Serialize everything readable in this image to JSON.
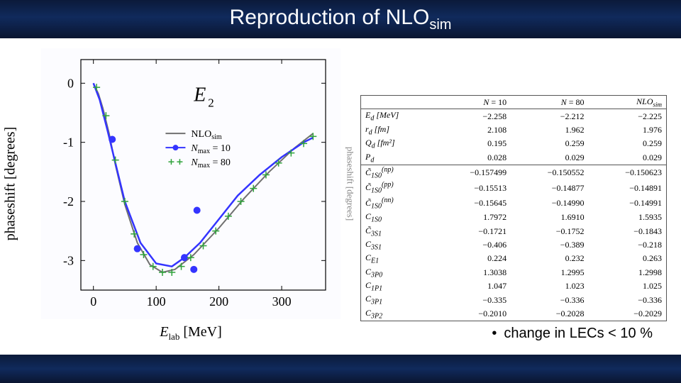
{
  "slide_title": "Reproduction of NLO",
  "slide_title_sub": "sim",
  "bullet_text": "change in LECs < 10 %",
  "chart": {
    "type": "line+scatter",
    "title_text": "E",
    "title_sub": "2",
    "xlabel": "E_lab [MeV]",
    "ylabel": "phaseshift [degrees]",
    "phantom_ylabel": "phaseshift [degrees]",
    "xlim": [
      -20,
      370
    ],
    "ylim": [
      -3.5,
      0.4
    ],
    "xticks": [
      0,
      100,
      200,
      300
    ],
    "yticks": [
      0,
      -1,
      -2,
      -3
    ],
    "background": "#fcfcff",
    "legend": [
      {
        "label": "NLO_sim",
        "kind": "line",
        "color": "#707070"
      },
      {
        "label": "N_max = 10",
        "kind": "dot",
        "color": "#3434ff"
      },
      {
        "label": "N_max = 80",
        "kind": "plus",
        "color": "#2fa33b"
      }
    ],
    "series": {
      "nlo": {
        "color": "#707070",
        "stroke_width": 2,
        "points": [
          [
            0,
            0
          ],
          [
            8,
            -0.18
          ],
          [
            15,
            -0.42
          ],
          [
            25,
            -0.85
          ],
          [
            35,
            -1.38
          ],
          [
            50,
            -2.05
          ],
          [
            70,
            -2.7
          ],
          [
            90,
            -3.07
          ],
          [
            110,
            -3.2
          ],
          [
            130,
            -3.15
          ],
          [
            160,
            -2.9
          ],
          [
            200,
            -2.45
          ],
          [
            240,
            -1.95
          ],
          [
            280,
            -1.5
          ],
          [
            320,
            -1.1
          ],
          [
            350,
            -0.85
          ]
        ]
      },
      "n10_curve": {
        "color": "#3434ff",
        "stroke_width": 2.5,
        "points": [
          [
            0,
            0
          ],
          [
            10,
            -0.28
          ],
          [
            22,
            -0.78
          ],
          [
            35,
            -1.35
          ],
          [
            50,
            -2.0
          ],
          [
            75,
            -2.7
          ],
          [
            100,
            -3.05
          ],
          [
            125,
            -3.1
          ],
          [
            145,
            -2.95
          ],
          [
            170,
            -2.7
          ],
          [
            200,
            -2.3
          ],
          [
            230,
            -1.9
          ],
          [
            265,
            -1.55
          ],
          [
            300,
            -1.25
          ],
          [
            335,
            -1.0
          ],
          [
            350,
            -0.92
          ]
        ]
      },
      "n10_dots": {
        "color": "#3434ff",
        "r": 5,
        "points": [
          [
            30,
            -0.95
          ],
          [
            70,
            -2.8
          ],
          [
            145,
            -2.95
          ],
          [
            165,
            -2.15
          ],
          [
            160,
            -3.15
          ]
        ]
      },
      "n80_plus": {
        "color": "#2fa33b",
        "size": 5,
        "stroke_width": 1.5,
        "points": [
          [
            5,
            -0.07
          ],
          [
            20,
            -0.55
          ],
          [
            35,
            -1.3
          ],
          [
            50,
            -2.0
          ],
          [
            65,
            -2.55
          ],
          [
            80,
            -2.9
          ],
          [
            95,
            -3.1
          ],
          [
            110,
            -3.2
          ],
          [
            125,
            -3.2
          ],
          [
            140,
            -3.1
          ],
          [
            155,
            -2.95
          ],
          [
            175,
            -2.75
          ],
          [
            195,
            -2.5
          ],
          [
            215,
            -2.25
          ],
          [
            235,
            -2.0
          ],
          [
            255,
            -1.78
          ],
          [
            275,
            -1.55
          ],
          [
            295,
            -1.35
          ],
          [
            315,
            -1.18
          ],
          [
            335,
            -1.02
          ],
          [
            350,
            -0.9
          ]
        ]
      }
    }
  },
  "table": {
    "columns": [
      "",
      "N = 10",
      "N = 80",
      "NLO_sim"
    ],
    "rows": [
      [
        "E_d  [MeV]",
        "−2.258",
        "−2.212",
        "−2.225"
      ],
      [
        "r_d  [fm]",
        "2.108",
        "1.962",
        "1.976"
      ],
      [
        "Q_d  [fm²]",
        "0.195",
        "0.259",
        "0.259"
      ],
      [
        "P_d",
        "0.028",
        "0.029",
        "0.029"
      ]
    ],
    "rows2": [
      [
        "C̃_1S0^(np)",
        "−0.157499",
        "−0.150552",
        "−0.150623"
      ],
      [
        "C̃_1S0^(pp)",
        "−0.15513",
        "−0.14877",
        "−0.14891"
      ],
      [
        "C̃_1S0^(nn)",
        "−0.15645",
        "−0.14990",
        "−0.14991"
      ],
      [
        "C_1S0",
        "1.7972",
        "1.6910",
        "1.5935"
      ],
      [
        "C̃_3S1",
        "−0.1721",
        "−0.1752",
        "−0.1843"
      ],
      [
        "C_3S1",
        "−0.406",
        "−0.389",
        "−0.218"
      ],
      [
        "C_E1",
        "0.224",
        "0.232",
        "0.263"
      ],
      [
        "C_3P0",
        "1.3038",
        "1.2995",
        "1.2998"
      ],
      [
        "C_1P1",
        "1.047",
        "1.023",
        "1.025"
      ],
      [
        "C_3P1",
        "−0.335",
        "−0.336",
        "−0.336"
      ],
      [
        "C_3P2",
        "−0.2010",
        "−0.2028",
        "−0.2029"
      ]
    ]
  }
}
